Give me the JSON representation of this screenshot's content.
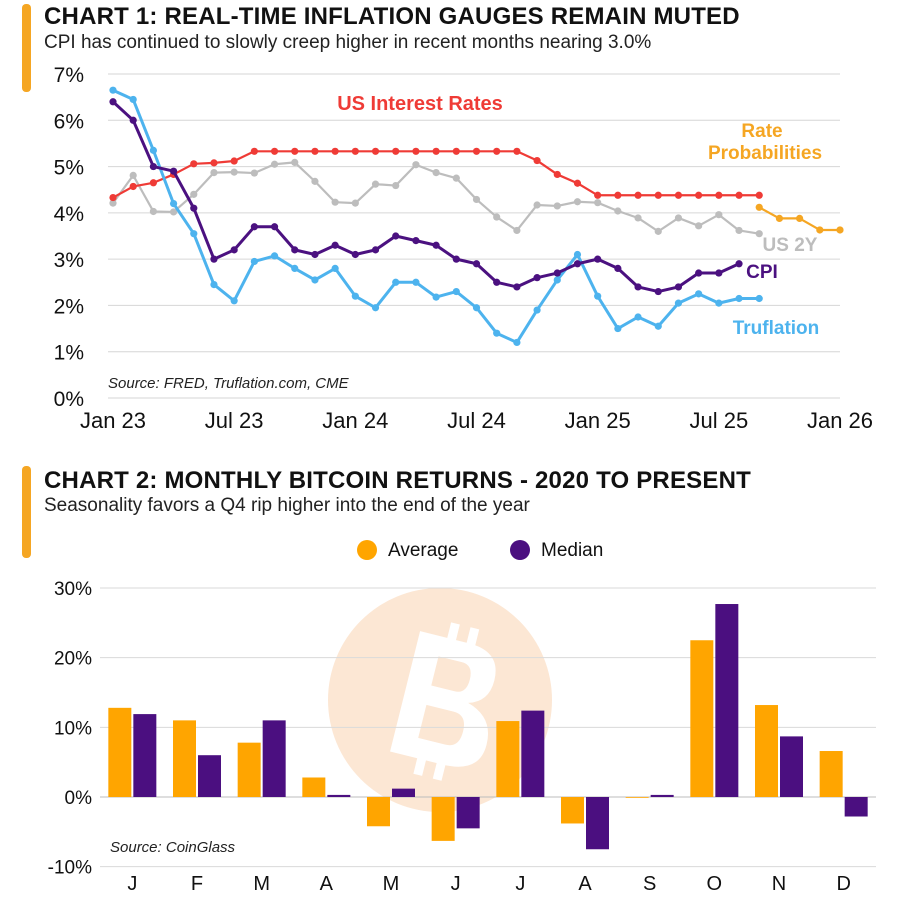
{
  "chart1": {
    "title": "CHART 1: REAL-TIME INFLATION GAUGES REMAIN MUTED",
    "subtitle": "CPI has continued to slowly creep higher in recent months nearing 3.0%",
    "source": "Source: FRED, Truflation.com, CME",
    "y_ticks": [
      "7%",
      "6%",
      "5%",
      "4%",
      "3%",
      "2%",
      "1%",
      "0%"
    ],
    "x_ticks": [
      "Jan 23",
      "Jul 23",
      "Jan 24",
      "Jul 24",
      "Jan 25",
      "Jul 25",
      "Jan 26"
    ],
    "labels": {
      "us_interest_rates": "US Interest Rates",
      "rate_prob_line1": "Rate",
      "rate_prob_line2": "Probabilities",
      "us2y": "US 2Y",
      "cpi": "CPI",
      "truflation": "Truflation"
    }
  },
  "chart2": {
    "title": "CHART 2: MONTHLY BITCOIN RETURNS - 2020 TO PRESENT",
    "subtitle": "Seasonality favors a Q4 rip higher into the end of the year",
    "source": "Source: CoinGlass",
    "legend": {
      "average": "Average",
      "median": "Median"
    },
    "y_ticks": [
      "30%",
      "20%",
      "10%",
      "0%",
      "-10%"
    ],
    "x_ticks": [
      "J",
      "F",
      "M",
      "A",
      "M",
      "J",
      "J",
      "A",
      "S",
      "O",
      "N",
      "D"
    ]
  },
  "colors": {
    "us_interest_rates": "#EF3B36",
    "rate_probabilities": "#F5A623",
    "us2y": "#BDBDBD",
    "cpi": "#4B1180",
    "truflation": "#4DB3EE",
    "average": "#FFA500",
    "median": "#4B0F80",
    "accent": "#F5A623",
    "watermark": "#FCE3CC"
  },
  "chart_data": [
    {
      "type": "line",
      "title": "CHART 1: REAL-TIME INFLATION GAUGES REMAIN MUTED",
      "subtitle": "CPI has continued to slowly creep higher in recent months nearing 3.0%",
      "x_range": [
        "2023-01",
        "2026-01"
      ],
      "ylim": [
        0,
        7
      ],
      "y_unit": "%",
      "grid": "horizontal",
      "series": [
        {
          "name": "US Interest Rates",
          "x": [
            "2023-01",
            "2023-02",
            "2023-03",
            "2023-04",
            "2023-05",
            "2023-06",
            "2023-07",
            "2023-08",
            "2023-09",
            "2023-10",
            "2023-11",
            "2023-12",
            "2024-01",
            "2024-02",
            "2024-03",
            "2024-04",
            "2024-05",
            "2024-06",
            "2024-07",
            "2024-08",
            "2024-09",
            "2024-10",
            "2024-11",
            "2024-12",
            "2025-01",
            "2025-02",
            "2025-03",
            "2025-04",
            "2025-05",
            "2025-06",
            "2025-07",
            "2025-08",
            "2025-09"
          ],
          "values": [
            4.33,
            4.57,
            4.65,
            4.83,
            5.06,
            5.08,
            5.12,
            5.33,
            5.33,
            5.33,
            5.33,
            5.33,
            5.33,
            5.33,
            5.33,
            5.33,
            5.33,
            5.33,
            5.33,
            5.33,
            5.33,
            5.13,
            4.83,
            4.64,
            4.38,
            4.38,
            4.38,
            4.38,
            4.38,
            4.38,
            4.38,
            4.38,
            4.38
          ]
        },
        {
          "name": "Rate Probabilities",
          "x": [
            "2025-09",
            "2025-10",
            "2025-11",
            "2025-12",
            "2026-01"
          ],
          "values": [
            4.12,
            3.88,
            3.88,
            3.63,
            3.63
          ]
        },
        {
          "name": "US 2Y",
          "x": [
            "2023-01",
            "2023-02",
            "2023-03",
            "2023-04",
            "2023-05",
            "2023-06",
            "2023-07",
            "2023-08",
            "2023-09",
            "2023-10",
            "2023-11",
            "2023-12",
            "2024-01",
            "2024-02",
            "2024-03",
            "2024-04",
            "2024-05",
            "2024-06",
            "2024-07",
            "2024-08",
            "2024-09",
            "2024-10",
            "2024-11",
            "2024-12",
            "2025-01",
            "2025-02",
            "2025-03",
            "2025-04",
            "2025-05",
            "2025-06",
            "2025-07",
            "2025-08",
            "2025-09"
          ],
          "values": [
            4.21,
            4.81,
            4.03,
            4.02,
            4.4,
            4.87,
            4.88,
            4.86,
            5.05,
            5.09,
            4.68,
            4.23,
            4.21,
            4.62,
            4.59,
            5.04,
            4.87,
            4.75,
            4.29,
            3.91,
            3.62,
            4.17,
            4.15,
            4.24,
            4.22,
            4.04,
            3.89,
            3.6,
            3.89,
            3.72,
            3.96,
            3.62,
            3.55
          ]
        },
        {
          "name": "CPI",
          "x": [
            "2023-01",
            "2023-02",
            "2023-03",
            "2023-04",
            "2023-05",
            "2023-06",
            "2023-07",
            "2023-08",
            "2023-09",
            "2023-10",
            "2023-11",
            "2023-12",
            "2024-01",
            "2024-02",
            "2024-03",
            "2024-04",
            "2024-05",
            "2024-06",
            "2024-07",
            "2024-08",
            "2024-09",
            "2024-10",
            "2024-11",
            "2024-12",
            "2025-01",
            "2025-02",
            "2025-03",
            "2025-04",
            "2025-05",
            "2025-06",
            "2025-07",
            "2025-08"
          ],
          "values": [
            6.4,
            6.0,
            5.0,
            4.9,
            4.1,
            3.0,
            3.2,
            3.7,
            3.7,
            3.2,
            3.1,
            3.3,
            3.1,
            3.2,
            3.5,
            3.4,
            3.3,
            3.0,
            2.9,
            2.5,
            2.4,
            2.6,
            2.7,
            2.9,
            3.0,
            2.8,
            2.4,
            2.3,
            2.4,
            2.7,
            2.7,
            2.9
          ]
        },
        {
          "name": "Truflation",
          "x": [
            "2023-01",
            "2023-02",
            "2023-03",
            "2023-04",
            "2023-05",
            "2023-06",
            "2023-07",
            "2023-08",
            "2023-09",
            "2023-10",
            "2023-11",
            "2023-12",
            "2024-01",
            "2024-02",
            "2024-03",
            "2024-04",
            "2024-05",
            "2024-06",
            "2024-07",
            "2024-08",
            "2024-09",
            "2024-10",
            "2024-11",
            "2024-12",
            "2025-01",
            "2025-02",
            "2025-03",
            "2025-04",
            "2025-05",
            "2025-06",
            "2025-07",
            "2025-08",
            "2025-09"
          ],
          "values": [
            6.65,
            6.45,
            5.35,
            4.2,
            3.55,
            2.45,
            2.1,
            2.95,
            3.07,
            2.8,
            2.55,
            2.8,
            2.2,
            1.95,
            2.5,
            2.5,
            2.18,
            2.3,
            1.95,
            1.4,
            1.2,
            1.9,
            2.55,
            3.1,
            2.2,
            1.5,
            1.75,
            1.55,
            2.05,
            2.25,
            2.05,
            2.15,
            2.15
          ]
        }
      ]
    },
    {
      "type": "bar",
      "title": "CHART 2: MONTHLY BITCOIN RETURNS - 2020 TO PRESENT",
      "subtitle": "Seasonality favors a Q4 rip higher into the end of the year",
      "categories": [
        "J",
        "F",
        "M",
        "A",
        "M",
        "J",
        "J",
        "A",
        "S",
        "O",
        "N",
        "D"
      ],
      "ylim": [
        -10,
        30
      ],
      "y_unit": "%",
      "legend": "top-center",
      "grid": "horizontal",
      "series": [
        {
          "name": "Average",
          "values": [
            12.8,
            11.0,
            7.8,
            2.8,
            -4.2,
            -6.3,
            10.9,
            -3.8,
            0.0,
            22.5,
            13.2,
            6.6
          ]
        },
        {
          "name": "Median",
          "values": [
            11.9,
            6.0,
            11.0,
            0.3,
            1.2,
            -4.5,
            12.4,
            -7.5,
            0.3,
            27.7,
            8.7,
            -2.8
          ]
        }
      ]
    }
  ]
}
